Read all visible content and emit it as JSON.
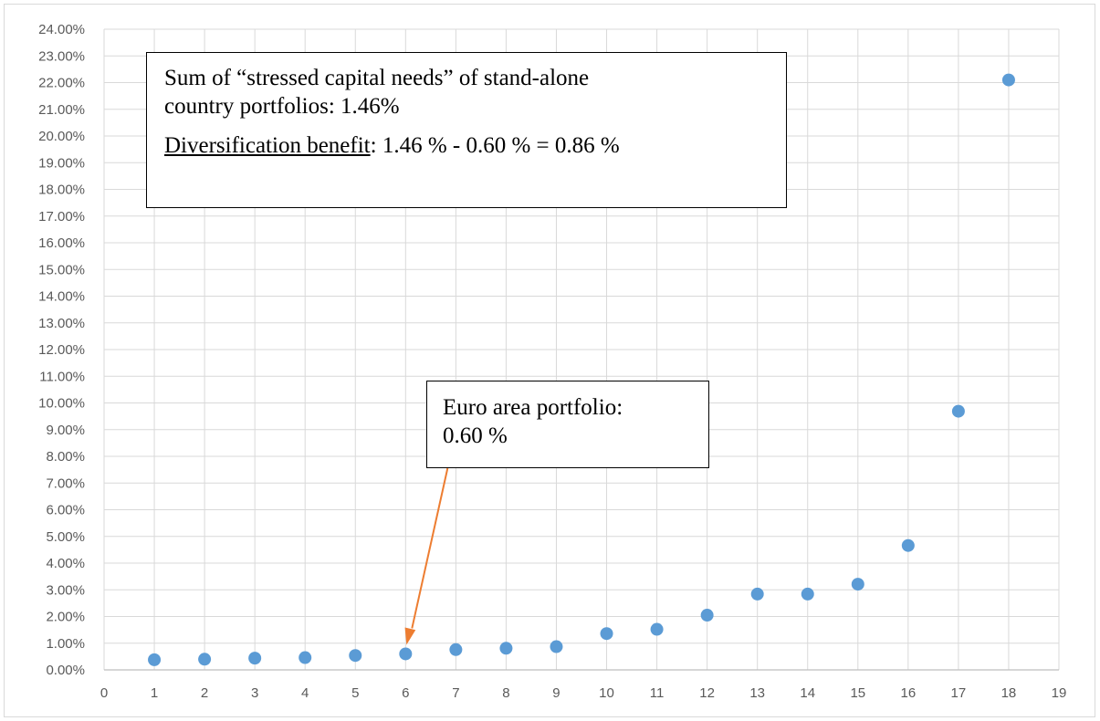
{
  "chart_data": {
    "type": "scatter",
    "title": "",
    "xlabel": "",
    "ylabel": "",
    "xlim": [
      0,
      19
    ],
    "ylim": [
      0,
      24
    ],
    "x_ticks": [
      "0",
      "1",
      "2",
      "3",
      "4",
      "5",
      "6",
      "7",
      "8",
      "9",
      "10",
      "11",
      "12",
      "13",
      "14",
      "15",
      "16",
      "17",
      "18",
      "19"
    ],
    "y_ticks": [
      "0.00%",
      "1.00%",
      "2.00%",
      "3.00%",
      "4.00%",
      "5.00%",
      "6.00%",
      "7.00%",
      "8.00%",
      "9.00%",
      "10.00%",
      "11.00%",
      "12.00%",
      "13.00%",
      "14.00%",
      "15.00%",
      "16.00%",
      "17.00%",
      "18.00%",
      "19.00%",
      "20.00%",
      "21.00%",
      "22.00%",
      "23.00%",
      "24.00%"
    ],
    "grid": true,
    "series": [
      {
        "x": [
          1,
          2,
          3,
          4,
          5,
          6,
          7,
          8,
          9,
          10,
          11,
          12,
          13,
          14,
          15,
          16,
          17,
          18
        ],
        "values": [
          0.38,
          0.4,
          0.44,
          0.46,
          0.54,
          0.6,
          0.76,
          0.81,
          0.87,
          1.36,
          1.52,
          2.05,
          2.84,
          2.84,
          3.21,
          4.66,
          9.69,
          22.1
        ],
        "color": "#5b9bd5"
      }
    ],
    "annotations": {
      "main_line1": "Sum of “stressed capital needs” of stand-alone",
      "main_line2": "country portfolios: 1.46%",
      "main_line3_label": "Diversification benefit",
      "main_line3_rest": ": 1.46 % - 0.60 % = 0.86 %",
      "euro_line1": "Euro area portfolio:",
      "euro_line2": "0.60 %"
    },
    "arrow": {
      "target_x": 6,
      "target_y": 0.6,
      "color": "#ed7d31"
    },
    "grid_color": "#d9d9d9",
    "axis_color": "#bfbfbf"
  }
}
